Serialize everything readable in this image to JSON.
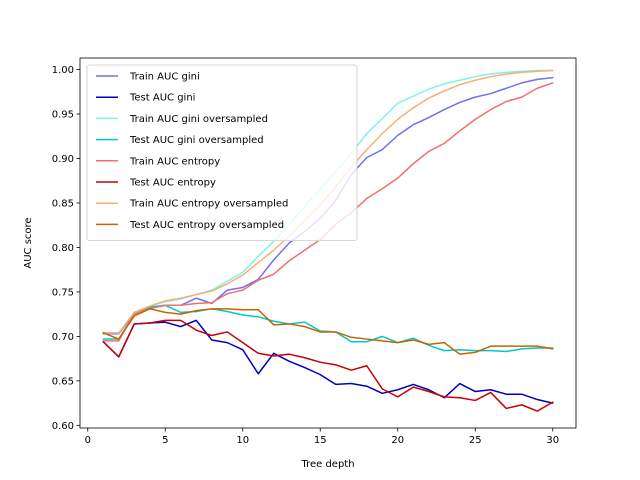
{
  "chart_data": {
    "type": "line",
    "title": "",
    "xlabel": "Tree depth",
    "ylabel": "AUC score",
    "xlim": [
      -0.5,
      31.5
    ],
    "ylim": [
      0.597,
      1.013
    ],
    "xticks": [
      0,
      5,
      10,
      15,
      20,
      25,
      30
    ],
    "yticks": [
      0.6,
      0.65,
      0.7,
      0.75,
      0.8,
      0.85,
      0.9,
      0.95,
      1.0
    ],
    "xtick_labels": [
      "0",
      "5",
      "10",
      "15",
      "20",
      "25",
      "30"
    ],
    "ytick_labels": [
      "0.60",
      "0.65",
      "0.70",
      "0.75",
      "0.80",
      "0.85",
      "0.90",
      "0.95",
      "1.00"
    ],
    "grid": false,
    "legend_position": "upper-left",
    "x": [
      1,
      2,
      3,
      4,
      5,
      6,
      7,
      8,
      9,
      10,
      11,
      12,
      13,
      14,
      15,
      16,
      17,
      18,
      19,
      20,
      21,
      22,
      23,
      24,
      25,
      26,
      27,
      28,
      29,
      30
    ],
    "series": [
      {
        "name": "Train AUC gini",
        "color": "#7070f0",
        "values": [
          0.703,
          0.703,
          0.726,
          0.732,
          0.735,
          0.735,
          0.743,
          0.737,
          0.752,
          0.755,
          0.764,
          0.786,
          0.805,
          0.818,
          0.833,
          0.853,
          0.882,
          0.901,
          0.91,
          0.926,
          0.938,
          0.946,
          0.955,
          0.963,
          0.969,
          0.973,
          0.979,
          0.985,
          0.989,
          0.991
        ]
      },
      {
        "name": "Test AUC gini",
        "color": "#0000c0",
        "values": [
          0.694,
          0.677,
          0.714,
          0.715,
          0.716,
          0.711,
          0.718,
          0.696,
          0.693,
          0.685,
          0.658,
          0.681,
          0.672,
          0.665,
          0.657,
          0.646,
          0.647,
          0.644,
          0.636,
          0.64,
          0.646,
          0.64,
          0.631,
          0.647,
          0.638,
          0.64,
          0.635,
          0.635,
          0.629,
          0.625
        ]
      },
      {
        "name": "Train AUC gini oversampled",
        "color": "#80f0f0",
        "values": [
          0.704,
          0.704,
          0.727,
          0.734,
          0.739,
          0.742,
          0.747,
          0.752,
          0.762,
          0.772,
          0.79,
          0.807,
          0.826,
          0.846,
          0.866,
          0.885,
          0.906,
          0.928,
          0.945,
          0.962,
          0.97,
          0.978,
          0.984,
          0.988,
          0.992,
          0.995,
          0.997,
          0.998,
          0.999,
          0.999
        ]
      },
      {
        "name": "Test AUC gini oversampled",
        "color": "#00c8c8",
        "values": [
          0.697,
          0.697,
          0.725,
          0.733,
          0.735,
          0.727,
          0.728,
          0.731,
          0.728,
          0.724,
          0.722,
          0.717,
          0.714,
          0.716,
          0.706,
          0.705,
          0.694,
          0.694,
          0.7,
          0.693,
          0.698,
          0.69,
          0.684,
          0.685,
          0.684,
          0.684,
          0.683,
          0.686,
          0.687,
          0.687
        ]
      },
      {
        "name": "Train AUC entropy",
        "color": "#f07070",
        "values": [
          0.695,
          0.695,
          0.726,
          0.731,
          0.735,
          0.735,
          0.737,
          0.738,
          0.748,
          0.752,
          0.763,
          0.77,
          0.785,
          0.797,
          0.809,
          0.826,
          0.839,
          0.855,
          0.866,
          0.878,
          0.894,
          0.908,
          0.917,
          0.931,
          0.944,
          0.955,
          0.964,
          0.969,
          0.979,
          0.985
        ]
      },
      {
        "name": "Test AUC entropy",
        "color": "#c80000",
        "values": [
          0.694,
          0.677,
          0.714,
          0.715,
          0.718,
          0.718,
          0.707,
          0.701,
          0.705,
          0.693,
          0.681,
          0.678,
          0.68,
          0.676,
          0.671,
          0.668,
          0.662,
          0.667,
          0.641,
          0.632,
          0.643,
          0.638,
          0.632,
          0.631,
          0.628,
          0.637,
          0.619,
          0.623,
          0.616,
          0.626
        ]
      },
      {
        "name": "Train AUC entropy oversampled",
        "color": "#f8b070",
        "values": [
          0.704,
          0.704,
          0.727,
          0.734,
          0.74,
          0.743,
          0.747,
          0.751,
          0.759,
          0.769,
          0.783,
          0.797,
          0.813,
          0.83,
          0.848,
          0.868,
          0.89,
          0.91,
          0.928,
          0.944,
          0.957,
          0.968,
          0.976,
          0.983,
          0.988,
          0.992,
          0.995,
          0.997,
          0.998,
          0.999
        ]
      },
      {
        "name": "Test AUC entropy oversampled",
        "color": "#c86400",
        "values": [
          0.704,
          0.697,
          0.723,
          0.731,
          0.727,
          0.725,
          0.729,
          0.731,
          0.731,
          0.73,
          0.73,
          0.713,
          0.714,
          0.711,
          0.705,
          0.705,
          0.699,
          0.697,
          0.695,
          0.693,
          0.696,
          0.691,
          0.693,
          0.68,
          0.682,
          0.689,
          0.689,
          0.689,
          0.689,
          0.686
        ]
      }
    ]
  }
}
